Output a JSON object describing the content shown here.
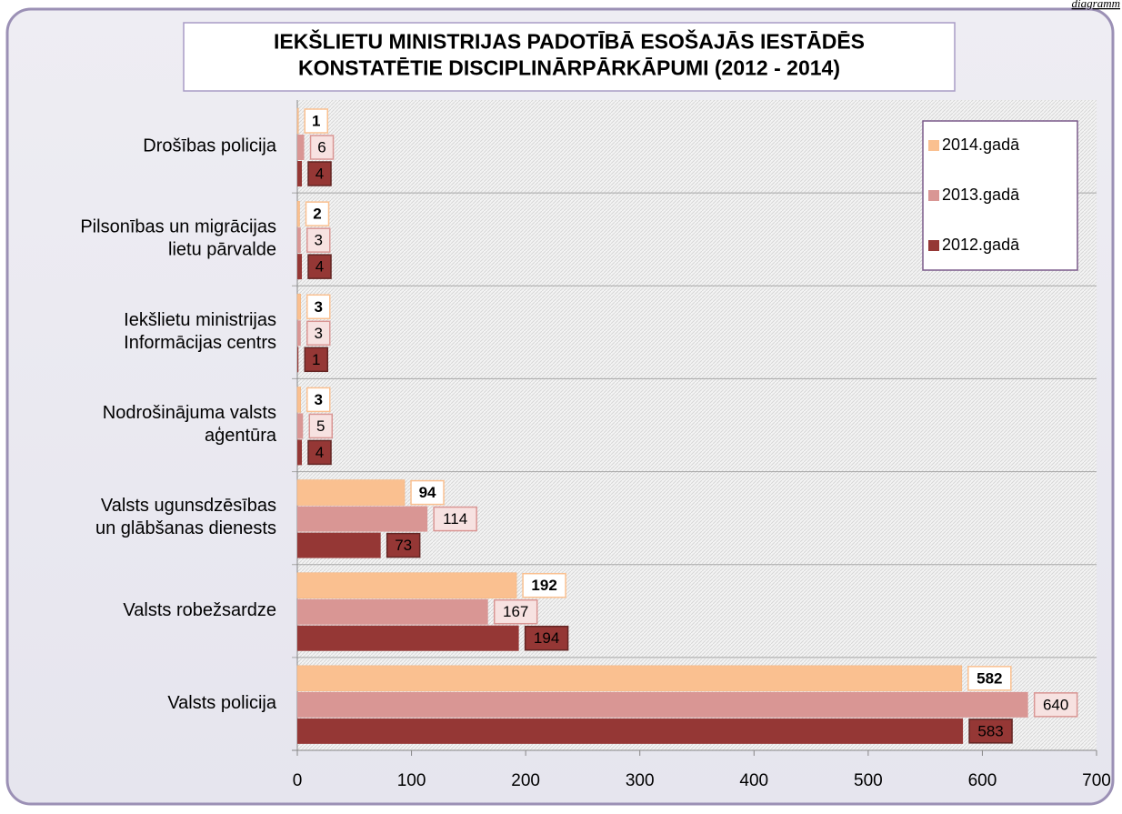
{
  "chart_data": {
    "type": "bar",
    "orientation": "horizontal",
    "caption": "diagramm",
    "title": "IEKŠLIETU MINISTRIJAS PADOTĪBĀ ESOŠAJĀS IESTĀDĒS\nKONSTATĒTIE DISCIPLINĀRPĀRKĀPUMI (2012 - 2014)",
    "categories": [
      "Drošības policija",
      "Pilsonības un migrācijas\nlietu pārvalde",
      "Iekšlietu ministrijas\nInformācijas centrs",
      "Nodrošinājuma valsts\naģentūra",
      "Valsts ugunsdzēsības\nun glābšanas dienests",
      "Valsts robežsardze",
      "Valsts policija"
    ],
    "series": [
      {
        "name": "2014.gadā",
        "color": "#fac090",
        "values": [
          1,
          2,
          3,
          3,
          94,
          192,
          582
        ]
      },
      {
        "name": "2013.gadā",
        "color": "#d99694",
        "values": [
          6,
          3,
          3,
          5,
          114,
          167,
          640
        ]
      },
      {
        "name": "2012.gadā",
        "color": "#953735",
        "values": [
          4,
          4,
          1,
          4,
          73,
          194,
          583
        ]
      }
    ],
    "xlim": [
      0,
      700
    ],
    "xticks": [
      0,
      100,
      200,
      300,
      400,
      500,
      600,
      700
    ],
    "legend": "top-right",
    "grid": true
  }
}
